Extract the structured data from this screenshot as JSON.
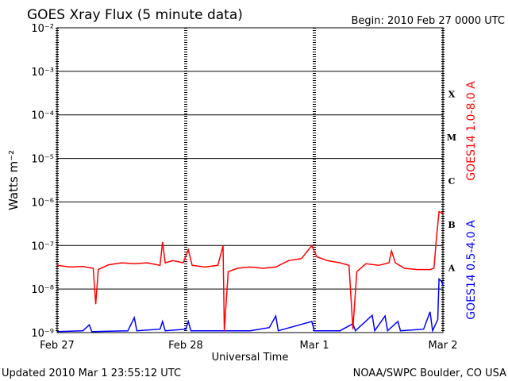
{
  "chart_data": {
    "type": "line",
    "title": "GOES Xray Flux (5 minute data)",
    "subtitle": "Begin:  2010 Feb 27 0000 UTC",
    "ylabel": "Watts m⁻²",
    "xlabel": "Universal Time",
    "footer_left": "Updated 2010 Mar  1 23:55:12 UTC",
    "footer_right": "NOAA/SWPC Boulder, CO USA",
    "log_y": true,
    "grid": true,
    "xlim": [
      0,
      3
    ],
    "xticks": [
      {
        "value": 0,
        "label": "Feb 27"
      },
      {
        "value": 1,
        "label": "Feb 28"
      },
      {
        "value": 2,
        "label": "Mar 1"
      },
      {
        "value": 3,
        "label": "Mar 2"
      }
    ],
    "ylim": [
      1e-09,
      0.01
    ],
    "yticks": [
      {
        "value": 1e-09,
        "label": "10⁻⁹"
      },
      {
        "value": 1e-08,
        "label": "10⁻⁸"
      },
      {
        "value": 1e-07,
        "label": "10⁻⁷"
      },
      {
        "value": 1e-06,
        "label": "10⁻⁶"
      },
      {
        "value": 1e-05,
        "label": "10⁻⁵"
      },
      {
        "value": 0.0001,
        "label": "10⁻⁴"
      },
      {
        "value": 0.001,
        "label": "10⁻³"
      },
      {
        "value": 0.01,
        "label": "10⁻²"
      }
    ],
    "class_labels": [
      "A",
      "B",
      "C",
      "M",
      "X"
    ],
    "series": [
      {
        "name": "GOES14 1.0-8.0 A",
        "color": "#ff0000",
        "x": [
          0,
          0.1,
          0.2,
          0.28,
          0.3,
          0.32,
          0.4,
          0.5,
          0.6,
          0.7,
          0.8,
          0.82,
          0.84,
          0.9,
          0.98,
          1.02,
          1.05,
          1.15,
          1.25,
          1.29,
          1.3,
          1.33,
          1.4,
          1.5,
          1.6,
          1.7,
          1.8,
          1.9,
          1.98,
          2.02,
          2.1,
          2.2,
          2.27,
          2.3,
          2.33,
          2.4,
          2.5,
          2.58,
          2.6,
          2.63,
          2.7,
          2.8,
          2.9,
          2.93,
          2.95,
          2.97,
          3.0
        ],
        "values": [
          3.5e-08,
          3.2e-08,
          3.3e-08,
          3e-08,
          4.5e-09,
          2.8e-08,
          3.6e-08,
          4e-08,
          3.8e-08,
          4e-08,
          3.5e-08,
          1.2e-07,
          4e-08,
          4.5e-08,
          4e-08,
          8e-08,
          3.5e-08,
          3.2e-08,
          3.5e-08,
          1e-07,
          1.1e-09,
          2.5e-08,
          3e-08,
          3.2e-08,
          3e-08,
          3.2e-08,
          4.5e-08,
          5e-08,
          1e-07,
          5.5e-08,
          4.5e-08,
          4e-08,
          3.5e-08,
          1.2e-09,
          2.5e-08,
          3.8e-08,
          3.5e-08,
          4e-08,
          7.5e-08,
          4e-08,
          3e-08,
          2.8e-08,
          2.8e-08,
          3e-08,
          1.5e-07,
          6e-07,
          5.5e-07
        ]
      },
      {
        "name": "GOES14 0.5-4.0 A",
        "color": "#0000ff",
        "x": [
          0,
          0.2,
          0.25,
          0.27,
          0.55,
          0.6,
          0.62,
          0.8,
          0.82,
          0.84,
          1.0,
          1.02,
          1.04,
          1.5,
          1.65,
          1.7,
          1.72,
          1.98,
          2.0,
          2.2,
          2.3,
          2.32,
          2.45,
          2.47,
          2.55,
          2.57,
          2.65,
          2.67,
          2.85,
          2.9,
          2.92,
          2.96,
          2.97,
          2.99,
          3.0
        ],
        "values": [
          1.05e-09,
          1.1e-09,
          1.5e-09,
          1.05e-09,
          1.1e-09,
          2.2e-09,
          1.1e-09,
          1.2e-09,
          1.8e-09,
          1.1e-09,
          1.2e-09,
          1.8e-09,
          1.1e-09,
          1.1e-09,
          1.3e-09,
          2.4e-09,
          1.1e-09,
          1.8e-09,
          1.1e-09,
          1.1e-09,
          1.6e-09,
          1.1e-09,
          2.5e-09,
          1.1e-09,
          2.4e-09,
          1.1e-09,
          1.8e-09,
          1.1e-09,
          1.2e-09,
          3e-09,
          1.1e-09,
          2e-09,
          1.7e-08,
          1.5e-08,
          1.2e-08
        ]
      }
    ]
  }
}
